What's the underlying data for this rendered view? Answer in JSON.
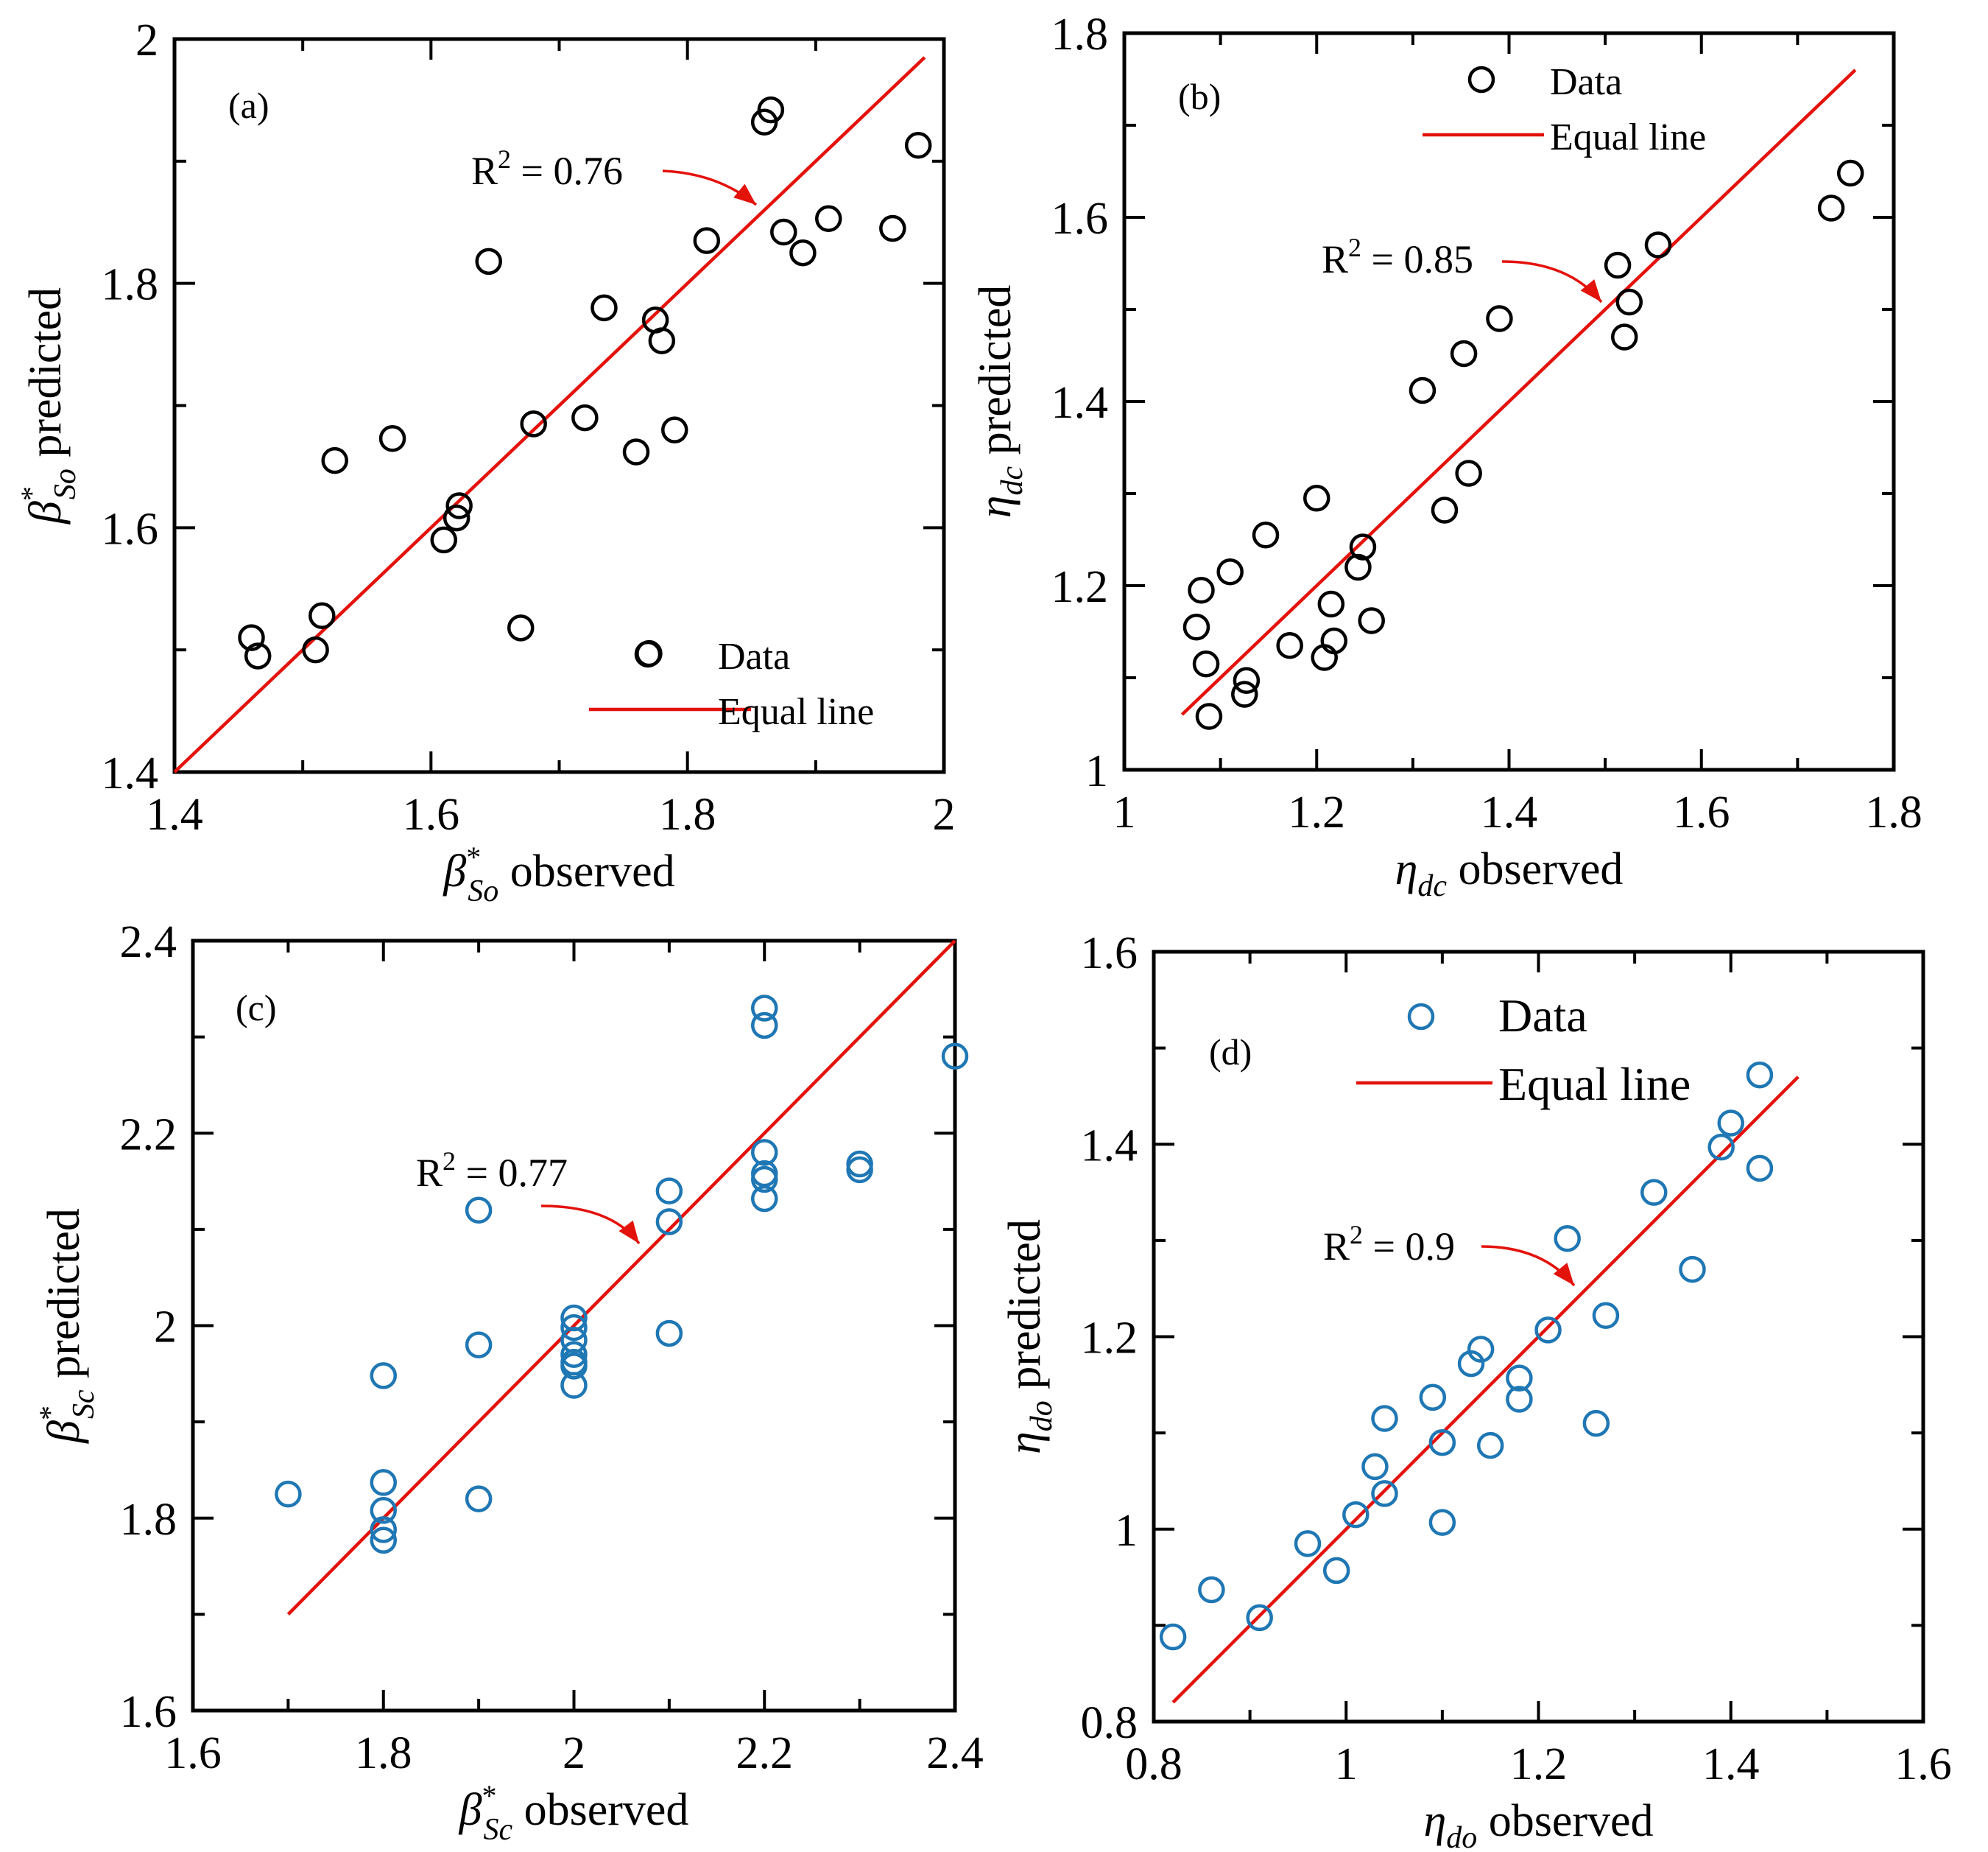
{
  "chart_data": [
    {
      "id": "a",
      "type": "scatter",
      "panel_label": "(a)",
      "xlabel": {
        "symbol": "β",
        "superscript": "*",
        "subscript": "So",
        "text": " observed"
      },
      "ylabel": {
        "symbol": "β",
        "superscript": "*",
        "subscript": "So",
        "text": " predicted"
      },
      "xlim": [
        1.4,
        2.0
      ],
      "ylim": [
        1.4,
        2.0
      ],
      "xticks": [
        1.4,
        1.6,
        1.8,
        2.0
      ],
      "xtick_labels": [
        "1.4",
        "1.6",
        "1.8",
        "2"
      ],
      "yticks": [
        1.4,
        1.6,
        1.8,
        2.0
      ],
      "ytick_labels": [
        "1.4",
        "1.6",
        "1.8",
        "2"
      ],
      "minor_step": 0.1,
      "marker_color": "#000000",
      "legend": {
        "position": "bottom-right",
        "data_label": "Data",
        "line_label": "Equal line"
      },
      "annotation": {
        "label": "R",
        "sup": "2",
        "value": " = 0.76"
      },
      "equal_line": {
        "from": 1.4,
        "to": 1.985,
        "color": "#e3120b"
      },
      "series": [
        {
          "name": "Data",
          "x": [
            1.46,
            1.465,
            1.51,
            1.515,
            1.525,
            1.57,
            1.61,
            1.62,
            1.622,
            1.645,
            1.67,
            1.68,
            1.72,
            1.735,
            1.76,
            1.77,
            1.775,
            1.78,
            1.79,
            1.815,
            1.86,
            1.865,
            1.875,
            1.89,
            1.91,
            1.96,
            1.98
          ],
          "y": [
            1.51,
            1.495,
            1.5,
            1.528,
            1.655,
            1.673,
            1.59,
            1.608,
            1.618,
            1.818,
            1.518,
            1.685,
            1.69,
            1.78,
            1.662,
            1.497,
            1.77,
            1.753,
            1.68,
            1.835,
            1.932,
            1.942,
            1.842,
            1.825,
            1.853,
            1.845,
            1.913
          ]
        }
      ]
    },
    {
      "id": "b",
      "type": "scatter",
      "panel_label": "(b)",
      "xlabel": {
        "symbol": "η",
        "superscript": "",
        "subscript": "dc",
        "text": " observed"
      },
      "ylabel": {
        "symbol": "η",
        "superscript": "",
        "subscript": "dc",
        "text": " predicted"
      },
      "xlim": [
        1.0,
        1.8
      ],
      "ylim": [
        1.0,
        1.8
      ],
      "xticks": [
        1.0,
        1.2,
        1.4,
        1.6,
        1.8
      ],
      "xtick_labels": [
        "1",
        "1.2",
        "1.4",
        "1.6",
        "1.8"
      ],
      "yticks": [
        1.0,
        1.2,
        1.4,
        1.6,
        1.8
      ],
      "ytick_labels": [
        "1",
        "1.2",
        "1.4",
        "1.6",
        "1.8"
      ],
      "minor_step": 0.1,
      "marker_color": "#000000",
      "legend": {
        "position": "top-center",
        "data_label": "Data",
        "line_label": "Equal line"
      },
      "annotation": {
        "label": "R",
        "sup": "2",
        "value": " = 0.85"
      },
      "equal_line": {
        "from": 1.06,
        "to": 1.76,
        "color": "#e3120b"
      },
      "series": [
        {
          "name": "Data",
          "x": [
            1.075,
            1.08,
            1.085,
            1.088,
            1.11,
            1.125,
            1.127,
            1.147,
            1.172,
            1.2,
            1.208,
            1.215,
            1.218,
            1.243,
            1.248,
            1.257,
            1.31,
            1.333,
            1.353,
            1.358,
            1.39,
            1.513,
            1.52,
            1.525,
            1.555,
            1.735,
            1.755
          ],
          "y": [
            1.155,
            1.195,
            1.115,
            1.058,
            1.215,
            1.082,
            1.097,
            1.255,
            1.135,
            1.295,
            1.122,
            1.18,
            1.14,
            1.22,
            1.242,
            1.162,
            1.412,
            1.282,
            1.452,
            1.322,
            1.49,
            1.548,
            1.47,
            1.508,
            1.57,
            1.61,
            1.648
          ]
        }
      ]
    },
    {
      "id": "c",
      "type": "scatter",
      "panel_label": "(c)",
      "xlabel": {
        "symbol": "β",
        "superscript": "*",
        "subscript": "Sc",
        "text": " observed"
      },
      "ylabel": {
        "symbol": "β",
        "superscript": "*",
        "subscript": "Sc",
        "text": " predicted"
      },
      "xlim": [
        1.6,
        2.4
      ],
      "ylim": [
        1.6,
        2.4
      ],
      "xticks": [
        1.6,
        1.8,
        2.0,
        2.2,
        2.4
      ],
      "xtick_labels": [
        "1.6",
        "1.8",
        "2",
        "2.2",
        "2.4"
      ],
      "yticks": [
        1.6,
        1.8,
        2.0,
        2.2,
        2.4
      ],
      "ytick_labels": [
        "1.6",
        "1.8",
        "2",
        "2.2",
        "2.4"
      ],
      "minor_step": 0.1,
      "marker_color": "#1f77b4",
      "legend": null,
      "annotation": {
        "label": "R",
        "sup": "2",
        "value": " = 0.77"
      },
      "equal_line": {
        "from": 1.7,
        "to": 2.4,
        "color": "#e3120b"
      },
      "series": [
        {
          "name": "Data",
          "x": [
            1.7,
            1.8,
            1.8,
            1.8,
            1.8,
            1.8,
            1.9,
            1.9,
            1.9,
            2.0,
            2.0,
            2.0,
            2.0,
            2.0,
            2.0,
            2.0,
            2.1,
            2.1,
            2.1,
            2.2,
            2.2,
            2.2,
            2.2,
            2.2,
            2.2,
            2.3,
            2.3,
            2.4
          ],
          "y": [
            1.825,
            1.948,
            1.837,
            1.808,
            1.788,
            1.777,
            2.12,
            1.98,
            1.82,
            2.008,
            1.998,
            1.985,
            1.97,
            1.962,
            1.958,
            1.938,
            2.14,
            2.108,
            1.992,
            2.33,
            2.312,
            2.18,
            2.158,
            2.152,
            2.132,
            2.168,
            2.162,
            2.28
          ]
        }
      ]
    },
    {
      "id": "d",
      "type": "scatter",
      "panel_label": "(d)",
      "xlabel": {
        "symbol": "η",
        "superscript": "",
        "subscript": "do",
        "text": " observed"
      },
      "ylabel": {
        "symbol": "η",
        "superscript": "",
        "subscript": "do",
        "text": " predicted"
      },
      "xlim": [
        0.8,
        1.6
      ],
      "ylim": [
        0.8,
        1.6
      ],
      "xticks": [
        0.8,
        1.0,
        1.2,
        1.4,
        1.6
      ],
      "xtick_labels": [
        "0.8",
        "1",
        "1.2",
        "1.4",
        "1.6"
      ],
      "yticks": [
        0.8,
        1.0,
        1.2,
        1.4,
        1.6
      ],
      "ytick_labels": [
        "0.8",
        "1",
        "1.2",
        "1.4",
        "1.6"
      ],
      "minor_step": 0.1,
      "marker_color": "#1f77b4",
      "legend": {
        "position": "top-center",
        "data_label": "Data",
        "line_label": "Equal line"
      },
      "annotation": {
        "label": "R",
        "sup": "2",
        "value": " = 0.9"
      },
      "equal_line": {
        "from": 0.82,
        "to": 1.47,
        "color": "#e3120b"
      },
      "series": [
        {
          "name": "Data",
          "x": [
            0.82,
            0.86,
            0.91,
            0.96,
            0.99,
            1.01,
            1.03,
            1.04,
            1.04,
            1.09,
            1.1,
            1.1,
            1.13,
            1.14,
            1.15,
            1.18,
            1.18,
            1.21,
            1.23,
            1.26,
            1.27,
            1.32,
            1.36,
            1.39,
            1.4,
            1.43,
            1.43
          ],
          "y": [
            0.888,
            0.937,
            0.908,
            0.985,
            0.957,
            1.015,
            1.065,
            1.115,
            1.037,
            1.137,
            1.09,
            1.007,
            1.172,
            1.187,
            1.087,
            1.157,
            1.135,
            1.207,
            1.302,
            1.11,
            1.222,
            1.35,
            1.27,
            1.397,
            1.422,
            1.472,
            1.375
          ]
        }
      ]
    }
  ]
}
